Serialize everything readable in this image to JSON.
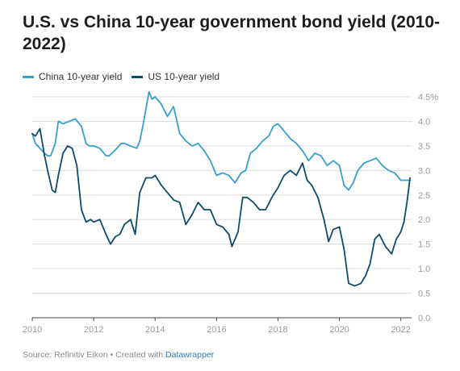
{
  "title": "U.S. vs China 10-year government bond yield (2010-2022)",
  "legend": {
    "china_label": "China 10-year yield",
    "us_label": "US 10-year yield"
  },
  "footer": {
    "source": "Source: Refinitiv Eikon • Created with ",
    "credit": "Datawrapper"
  },
  "colors": {
    "china": "#35a0cc",
    "us": "#0d4a6b",
    "grid": "#dddddd",
    "axis_text": "#9a9a9a",
    "credit": "#2f7ab5"
  },
  "chart_data": {
    "type": "line",
    "x_label": "",
    "y_label": "",
    "xlim": [
      2010,
      2022.35
    ],
    "ylim": [
      0,
      4.5
    ],
    "x_ticks": [
      2010,
      2012,
      2014,
      2016,
      2018,
      2020,
      2022
    ],
    "y_ticks": [
      0.0,
      0.5,
      1.0,
      1.5,
      2.0,
      2.5,
      3.0,
      3.5,
      4.0,
      4.5
    ],
    "y_tick_labels": [
      "0.0",
      "0.5",
      "1.0",
      "1.5",
      "2.0",
      "2.5",
      "3.0",
      "3.5",
      "4.0",
      "4.5%"
    ],
    "grid": "horizontal",
    "legend_position": "top-left",
    "series": [
      {
        "name": "China 10-year yield",
        "color": "#35a0cc",
        "x": [
          2010.0,
          2010.1,
          2010.25,
          2010.4,
          2010.5,
          2010.6,
          2010.75,
          2010.85,
          2011.0,
          2011.2,
          2011.4,
          2011.6,
          2011.75,
          2011.85,
          2012.0,
          2012.2,
          2012.4,
          2012.5,
          2012.6,
          2012.75,
          2012.9,
          2013.0,
          2013.2,
          2013.4,
          2013.5,
          2013.6,
          2013.7,
          2013.8,
          2013.9,
          2014.0,
          2014.2,
          2014.4,
          2014.6,
          2014.8,
          2015.0,
          2015.2,
          2015.4,
          2015.6,
          2015.8,
          2016.0,
          2016.2,
          2016.4,
          2016.6,
          2016.8,
          2016.95,
          2017.1,
          2017.3,
          2017.5,
          2017.7,
          2017.85,
          2018.0,
          2018.2,
          2018.4,
          2018.6,
          2018.8,
          2019.0,
          2019.2,
          2019.4,
          2019.6,
          2019.8,
          2020.0,
          2020.15,
          2020.3,
          2020.45,
          2020.6,
          2020.8,
          2021.0,
          2021.2,
          2021.4,
          2021.6,
          2021.8,
          2022.0,
          2022.15,
          2022.3
        ],
        "y": [
          3.75,
          3.55,
          3.45,
          3.35,
          3.3,
          3.3,
          3.55,
          4.0,
          3.95,
          4.0,
          4.05,
          3.9,
          3.55,
          3.5,
          3.5,
          3.45,
          3.3,
          3.3,
          3.35,
          3.45,
          3.55,
          3.55,
          3.5,
          3.45,
          3.6,
          3.9,
          4.25,
          4.6,
          4.45,
          4.5,
          4.35,
          4.1,
          4.3,
          3.75,
          3.6,
          3.5,
          3.55,
          3.4,
          3.2,
          2.9,
          2.95,
          2.9,
          2.75,
          2.95,
          3.0,
          3.35,
          3.45,
          3.6,
          3.7,
          3.9,
          3.95,
          3.8,
          3.65,
          3.55,
          3.4,
          3.2,
          3.35,
          3.3,
          3.1,
          3.2,
          3.1,
          2.7,
          2.6,
          2.75,
          3.0,
          3.15,
          3.2,
          3.25,
          3.1,
          3.0,
          2.95,
          2.8,
          2.8,
          2.8
        ]
      },
      {
        "name": "US 10-year yield",
        "color": "#0d4a6b",
        "x": [
          2010.0,
          2010.1,
          2010.25,
          2010.4,
          2010.5,
          2010.65,
          2010.75,
          2010.85,
          2011.0,
          2011.15,
          2011.3,
          2011.45,
          2011.6,
          2011.75,
          2011.9,
          2012.0,
          2012.2,
          2012.4,
          2012.55,
          2012.7,
          2012.85,
          2013.0,
          2013.2,
          2013.35,
          2013.5,
          2013.7,
          2013.9,
          2014.0,
          2014.2,
          2014.4,
          2014.6,
          2014.8,
          2015.0,
          2015.2,
          2015.4,
          2015.6,
          2015.8,
          2016.0,
          2016.2,
          2016.4,
          2016.5,
          2016.7,
          2016.85,
          2017.0,
          2017.2,
          2017.4,
          2017.6,
          2017.8,
          2018.0,
          2018.2,
          2018.4,
          2018.6,
          2018.8,
          2018.95,
          2019.1,
          2019.3,
          2019.5,
          2019.65,
          2019.8,
          2020.0,
          2020.15,
          2020.3,
          2020.5,
          2020.7,
          2020.85,
          2021.0,
          2021.15,
          2021.3,
          2021.5,
          2021.7,
          2021.85,
          2022.0,
          2022.1,
          2022.2,
          2022.3
        ],
        "y": [
          3.75,
          3.7,
          3.85,
          3.3,
          3.0,
          2.6,
          2.55,
          2.9,
          3.35,
          3.5,
          3.45,
          3.1,
          2.2,
          1.95,
          2.0,
          1.95,
          2.0,
          1.7,
          1.5,
          1.65,
          1.7,
          1.9,
          2.0,
          1.7,
          2.55,
          2.85,
          2.85,
          2.9,
          2.7,
          2.55,
          2.4,
          2.35,
          1.9,
          2.1,
          2.35,
          2.2,
          2.2,
          1.9,
          1.85,
          1.7,
          1.45,
          1.75,
          2.45,
          2.45,
          2.35,
          2.2,
          2.2,
          2.45,
          2.65,
          2.9,
          3.0,
          2.9,
          3.15,
          2.8,
          2.7,
          2.45,
          2.0,
          1.55,
          1.8,
          1.85,
          1.4,
          0.7,
          0.65,
          0.7,
          0.85,
          1.1,
          1.6,
          1.7,
          1.45,
          1.3,
          1.6,
          1.75,
          1.95,
          2.35,
          2.85
        ]
      }
    ]
  }
}
